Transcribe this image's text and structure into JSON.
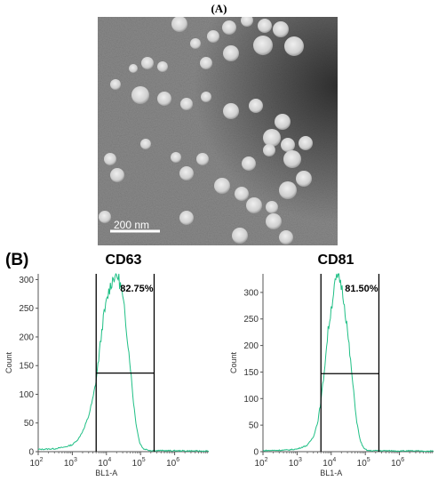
{
  "figure": {
    "panel_a_label": "(A)",
    "panel_b_label": "(B)",
    "tem": {
      "scale_bar_label": "200 nm",
      "background": "#8a8a8a",
      "particle_color": "#d9d9d9"
    }
  },
  "chart_data": [
    {
      "type": "histogram",
      "title": "CD63",
      "xlabel": "BL1-A",
      "ylabel": "Count",
      "x_scale": "log",
      "x_range": [
        100,
        10000000
      ],
      "x_tick_values": [
        100,
        1000,
        10000,
        100000,
        1000000
      ],
      "x_ticks": [
        {
          "base": "10",
          "exp": "2"
        },
        {
          "base": "10",
          "exp": "3"
        },
        {
          "base": "10",
          "exp": "4"
        },
        {
          "base": "10",
          "exp": "5"
        },
        {
          "base": "10",
          "exp": "6"
        }
      ],
      "ylim": [
        0,
        310
      ],
      "y_ticks": [
        "0",
        "50",
        "100",
        "150",
        "200",
        "250",
        "300"
      ],
      "y_tick_values": [
        0,
        50,
        100,
        150,
        200,
        250,
        300
      ],
      "gate": {
        "x_from": 5000,
        "x_to": 250000,
        "y": 137,
        "label": "82.75%"
      },
      "line_color": "#1fbf85",
      "curve": [
        [
          100,
          4
        ],
        [
          300,
          5
        ],
        [
          600,
          8
        ],
        [
          1000,
          12
        ],
        [
          1500,
          22
        ],
        [
          2200,
          40
        ],
        [
          3000,
          62
        ],
        [
          4000,
          92
        ],
        [
          5000,
          125
        ],
        [
          6000,
          165
        ],
        [
          7000,
          200
        ],
        [
          8000,
          230
        ],
        [
          10000,
          260
        ],
        [
          12000,
          282
        ],
        [
          15000,
          300
        ],
        [
          18000,
          308
        ],
        [
          22000,
          305
        ],
        [
          27000,
          285
        ],
        [
          33000,
          250
        ],
        [
          40000,
          205
        ],
        [
          50000,
          150
        ],
        [
          60000,
          95
        ],
        [
          75000,
          45
        ],
        [
          95000,
          15
        ],
        [
          120000,
          5
        ],
        [
          200000,
          2
        ],
        [
          10000000,
          1
        ]
      ]
    },
    {
      "type": "histogram",
      "title": "CD81",
      "xlabel": "BL1-A",
      "ylabel": "Count",
      "x_scale": "log",
      "x_range": [
        100,
        10000000
      ],
      "x_tick_values": [
        100,
        1000,
        10000,
        100000,
        1000000
      ],
      "x_ticks": [
        {
          "base": "10",
          "exp": "2"
        },
        {
          "base": "10",
          "exp": "3"
        },
        {
          "base": "10",
          "exp": "4"
        },
        {
          "base": "10",
          "exp": "5"
        },
        {
          "base": "10",
          "exp": "6"
        }
      ],
      "ylim": [
        0,
        335
      ],
      "y_ticks": [
        "0",
        "50",
        "100",
        "150",
        "200",
        "250",
        "300"
      ],
      "y_tick_values": [
        0,
        50,
        100,
        150,
        200,
        250,
        300
      ],
      "gate": {
        "x_from": 5000,
        "x_to": 250000,
        "y": 147,
        "label": "81.50%"
      },
      "line_color": "#1fbf85",
      "curve": [
        [
          100,
          2
        ],
        [
          500,
          3
        ],
        [
          1000,
          5
        ],
        [
          2000,
          12
        ],
        [
          3000,
          28
        ],
        [
          4000,
          55
        ],
        [
          5000,
          95
        ],
        [
          6000,
          140
        ],
        [
          7000,
          185
        ],
        [
          8000,
          225
        ],
        [
          10000,
          270
        ],
        [
          12000,
          305
        ],
        [
          14000,
          325
        ],
        [
          16000,
          332
        ],
        [
          19000,
          320
        ],
        [
          23000,
          290
        ],
        [
          28000,
          245
        ],
        [
          35000,
          185
        ],
        [
          45000,
          115
        ],
        [
          55000,
          60
        ],
        [
          70000,
          22
        ],
        [
          90000,
          6
        ],
        [
          120000,
          2
        ],
        [
          10000000,
          1
        ]
      ]
    }
  ]
}
